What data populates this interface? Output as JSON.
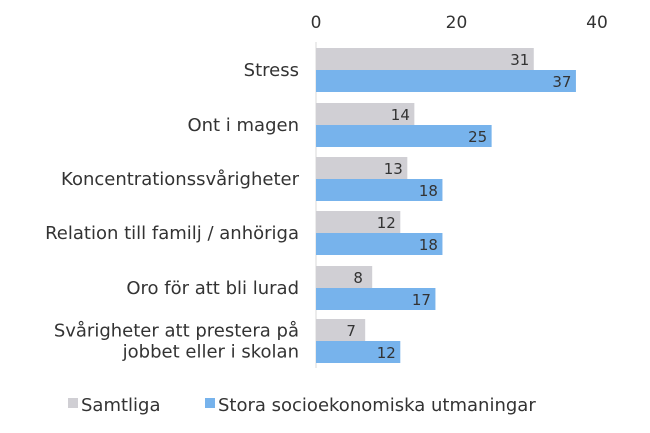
{
  "chart_data": {
    "type": "bar",
    "orientation": "horizontal",
    "categories": [
      [
        "Stress"
      ],
      [
        "Ont i magen"
      ],
      [
        "Koncentrationssvårigheter"
      ],
      [
        "Relation till familj / anhöriga"
      ],
      [
        "Oro för att bli lurad"
      ],
      [
        "Svårigheter att prestera på",
        "jobbet eller i skolan"
      ]
    ],
    "series": [
      {
        "name": "Samtliga",
        "values": [
          31,
          14,
          13,
          12,
          8,
          7
        ],
        "color": "#d0cfd4"
      },
      {
        "name": "Stora socioekonomiska utmaningar",
        "values": [
          37,
          25,
          18,
          18,
          17,
          12
        ],
        "color": "#77b3ec"
      }
    ],
    "xlim": [
      0,
      40
    ],
    "ticks": [
      0,
      20,
      40
    ],
    "axis_position": "top",
    "grid": false,
    "legend": "bottom"
  }
}
